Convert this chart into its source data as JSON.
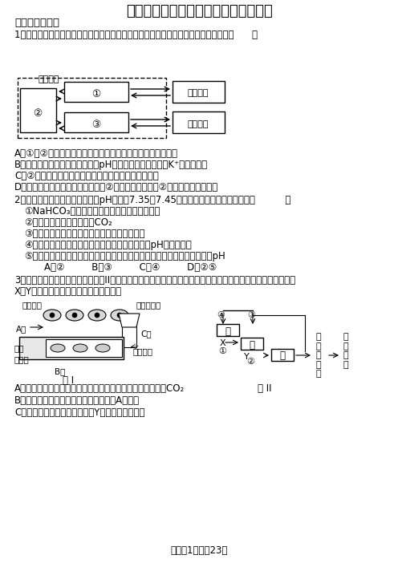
{
  "title": "襄阳五中高二年级十二月月考生物试题",
  "background_color": "#ffffff",
  "text_color": "#000000",
  "lines": [
    {
      "type": "section",
      "text": "一、单项选择题",
      "bold": true
    },
    {
      "type": "q",
      "text": "1．如图表示人体内的细胞与外界环境之间进行物质交换的过程，下列叙述不正确的是（      ）"
    },
    {
      "type": "ans",
      "text": "A．①～②分别代表血浆、淋巴和组织液，共同构成人体内环境"
    },
    {
      "type": "ans",
      "text": "B．过量补充生理盐水时，会影响pH的稳态，也会使血浆中K⁺的浓度偏低"
    },
    {
      "type": "ans",
      "text": "C．②中无机盐浓度过高时，垂体释放的相关激素会增加"
    },
    {
      "type": "ans",
      "text": "D．当人体蛋白质长期供应不足时，②处的渗透压下降，②处的渗透压明显上升"
    },
    {
      "type": "q",
      "text": "2．科学家通过研究发现，人血液pH通常在7.35～7.45之间，变化不大的原因不包括（          ）"
    },
    {
      "type": "sub",
      "text": "①NaHCO₃等碱性物质对血液酸碱度起缓冲作用"
    },
    {
      "type": "sub",
      "text": "②通过呼吸系统可不断排出CO₂"
    },
    {
      "type": "sub",
      "text": "③血液中过多的碳酸盐可以由肾脏通过排出体外"
    },
    {
      "type": "sub",
      "text": "④神经系统对呼吸运动强度的调节有利于维持血液pH的相对稳定"
    },
    {
      "type": "sub",
      "text": "⑤食物中的碱性物质与新陈代谢产生的酸性物质所构成的缓冲对调节了血液pH"
    },
    {
      "type": "abcd",
      "text": "A．②         B．③         C．④         D．②⑤"
    },
    {
      "type": "q",
      "text": "3．图是某组织局部结构模式图，图II是人体甲状腺激素分泌的分级调节示意图，甲、乙、丙分别代表腺体名称，"
    },
    {
      "type": "q2",
      "text": "X、Y代表激素名称，下列叙述不正确的是"
    },
    {
      "type": "ans",
      "text": "A．图二中，红细胞通过协助扩散吸收血糖进行无氧呼吸产生CO₂"
    },
    {
      "type": "ans",
      "text": "B．某人长期营养不良，则会引起图二中A液增多"
    },
    {
      "type": "ans",
      "text": "C．地方性甲状腺肿大与图二中Y激素分泌过量有关"
    }
  ],
  "footer": "答案第1页，共23页"
}
